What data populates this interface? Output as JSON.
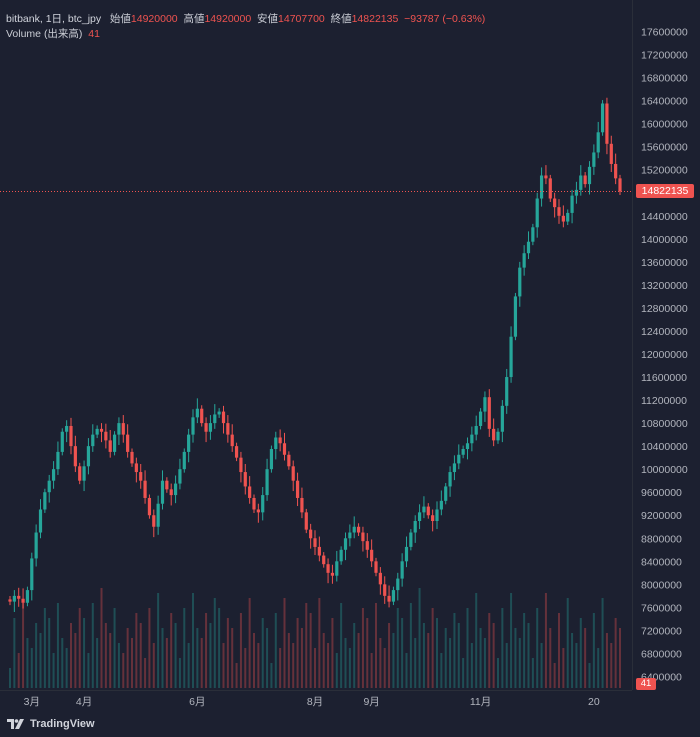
{
  "legend": {
    "symbol": "bitbank, 1日, btc_jpy",
    "open_label": "始値",
    "open_value": "14920000",
    "high_label": "高値",
    "high_value": "14920000",
    "low_label": "安値",
    "low_value": "14707700",
    "close_label": "終値",
    "close_value": "14822135",
    "change": "−93787 (−0.63%)",
    "volume_label": "Volume (出来高)",
    "volume_value": "41"
  },
  "price_scale": {
    "ticks": [
      "17600000",
      "17200000",
      "16800000",
      "16400000",
      "16000000",
      "15600000",
      "15200000",
      "14800000",
      "14400000",
      "14000000",
      "13600000",
      "13200000",
      "12800000",
      "12400000",
      "12000000",
      "11600000",
      "11200000",
      "10800000",
      "10400000",
      "10000000",
      "9600000",
      "9200000",
      "8800000",
      "8400000",
      "8000000",
      "7600000",
      "7200000",
      "6800000",
      "6400000"
    ],
    "current_price": "14822135",
    "volume_tag": "41"
  },
  "time_scale": {
    "labels": [
      "3月",
      "4月",
      "6月",
      "8月",
      "9月",
      "11月",
      "20"
    ]
  },
  "footer": {
    "brand": "TradingView"
  },
  "colors": {
    "up": "#26a69a",
    "down": "#ef5350",
    "background": "#1c2030"
  },
  "chart_data": {
    "type": "candlestick",
    "title": "",
    "xlabel": "",
    "ylabel": "",
    "ylim": [
      6200000,
      17800000
    ],
    "x_ticks": [
      "3月",
      "4月",
      "6月",
      "8月",
      "9月",
      "11月",
      "20"
    ],
    "last_close": 14822135,
    "series": [
      {
        "name": "btc_jpy",
        "close_approx": [
          7700000,
          7800000,
          7750000,
          7680000,
          7900000,
          8450000,
          8900000,
          9300000,
          9600000,
          9800000,
          10000000,
          10300000,
          10650000,
          10750000,
          10400000,
          10050000,
          9800000,
          10050000,
          10400000,
          10600000,
          10700000,
          10650000,
          10500000,
          10300000,
          10600000,
          10800000,
          10600000,
          10300000,
          10100000,
          9950000,
          9800000,
          9500000,
          9200000,
          9000000,
          9400000,
          9800000,
          9650000,
          9550000,
          9750000,
          10000000,
          10300000,
          10600000,
          10900000,
          11050000,
          10800000,
          10650000,
          10800000,
          10950000,
          11000000,
          10800000,
          10600000,
          10400000,
          10200000,
          9950000,
          9700000,
          9500000,
          9300000,
          9250000,
          9550000,
          10000000,
          10350000,
          10550000,
          10450000,
          10250000,
          10050000,
          9800000,
          9500000,
          9250000,
          8950000,
          8800000,
          8650000,
          8500000,
          8350000,
          8200000,
          8150000,
          8400000,
          8600000,
          8800000,
          8900000,
          9000000,
          8900000,
          8750000,
          8600000,
          8400000,
          8200000,
          8000000,
          7800000,
          7700000,
          7900000,
          8100000,
          8400000,
          8650000,
          8900000,
          9100000,
          9250000,
          9350000,
          9200000,
          9100000,
          9300000,
          9450000,
          9700000,
          9950000,
          10100000,
          10250000,
          10350000,
          10450000,
          10600000,
          10750000,
          11000000,
          11250000,
          10700000,
          10500000,
          10650000,
          11100000,
          11600000,
          12300000,
          13000000,
          13500000,
          13750000,
          13950000,
          14200000,
          14700000,
          15100000,
          15050000,
          14700000,
          14550000,
          14400000,
          14300000,
          14450000,
          14750000,
          14850000,
          15100000,
          14950000,
          15250000,
          15500000,
          15850000,
          16350000,
          15650000,
          15300000,
          15050000,
          14822135
        ]
      }
    ]
  }
}
